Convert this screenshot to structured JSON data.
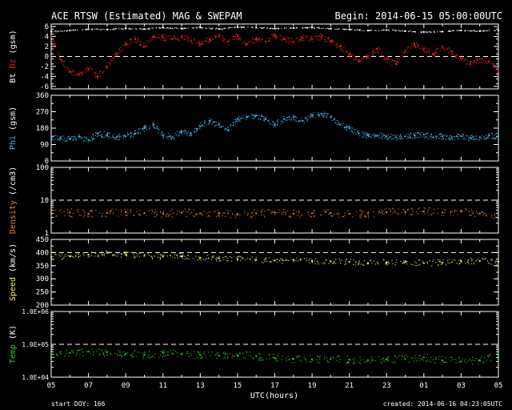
{
  "header": {
    "title": "ACE RTSW (Estimated) MAG & SWEPAM",
    "begin": "Begin: 2014-06-15 05:00:00UTC"
  },
  "footer": {
    "start_doy": "start DOY: 166",
    "created": "created: 2014-06-16 04:23:05UTC"
  },
  "colors": {
    "background": "#000000",
    "axes": "#ffffff",
    "bt": "#ffffff",
    "bz": "#e02020",
    "phi": "#40b8e8",
    "density": "#e88040",
    "speed": "#f0f060",
    "temp": "#30d030"
  },
  "chart_data": {
    "type": "scatter",
    "x_label": "UTC(hours)",
    "x_range_hours": [
      0,
      24
    ],
    "x_tick_labels": [
      "05",
      "07",
      "09",
      "11",
      "13",
      "15",
      "17",
      "19",
      "21",
      "23",
      "01",
      "03",
      "05"
    ],
    "panels": [
      {
        "key": "mag",
        "ylabel_parts": [
          {
            "text": "Bt",
            "color": "#ffffff"
          },
          {
            "text": " ",
            "color": "#ffffff"
          },
          {
            "text": "Bz",
            "color": "#e02020"
          },
          {
            "text": " (gsm)",
            "color": "#ffffff"
          }
        ],
        "scale": "linear",
        "ylim": [
          -6.5,
          6.5
        ],
        "ticks": [
          -6,
          -4,
          -2,
          0,
          2,
          4,
          6
        ],
        "tick_labels": [
          "-6",
          "-4",
          "-2",
          "0",
          "2",
          "4",
          "6"
        ],
        "dashed_refs": [
          0
        ],
        "series": [
          {
            "name": "Bt",
            "color": "#ffffff",
            "x": [
              0,
              1,
              2,
              3,
              4,
              5,
              6,
              7,
              8,
              9,
              10,
              11,
              12,
              13,
              14,
              15,
              16,
              17,
              18,
              19,
              20,
              21,
              22,
              23,
              24
            ],
            "y": [
              5.0,
              5.2,
              5.5,
              5.4,
              5.6,
              5.5,
              5.8,
              5.6,
              5.8,
              5.5,
              5.9,
              5.8,
              5.6,
              5.7,
              5.8,
              5.6,
              5.4,
              5.2,
              5.3,
              5.1,
              4.9,
              5.0,
              5.2,
              5.1,
              5.2
            ]
          },
          {
            "name": "Bz",
            "color": "#e02020",
            "x": [
              0,
              0.5,
              1,
              1.5,
              2,
              2.5,
              3,
              3.5,
              4,
              4.5,
              5,
              5.5,
              6,
              6.5,
              7,
              7.5,
              8,
              8.5,
              9,
              9.5,
              10,
              10.5,
              11,
              11.5,
              12,
              12.5,
              13,
              13.5,
              14,
              14.5,
              15,
              15.5,
              16,
              16.5,
              17,
              17.5,
              18,
              18.5,
              19,
              19.5,
              20,
              20.5,
              21,
              21.5,
              22,
              22.5,
              23,
              23.5,
              24
            ],
            "y": [
              4.0,
              -0.5,
              -3.0,
              -3.5,
              -2.5,
              -4.0,
              -2.0,
              0.5,
              2.5,
              3.5,
              2.0,
              4.0,
              3.8,
              3.5,
              4.0,
              3.2,
              2.5,
              3.5,
              4.0,
              3.0,
              4.0,
              2.5,
              3.5,
              3.0,
              4.2,
              3.5,
              3.0,
              3.8,
              3.5,
              4.0,
              3.0,
              2.0,
              0.5,
              -1.0,
              0.0,
              1.5,
              -0.5,
              -1.5,
              1.0,
              2.5,
              1.5,
              0.5,
              2.0,
              1.0,
              -0.5,
              -1.5,
              -0.5,
              -1.0,
              -3.0
            ]
          }
        ]
      },
      {
        "key": "phi",
        "ylabel_parts": [
          {
            "text": "Phi",
            "color": "#40b8e8"
          },
          {
            "text": " (gsm)",
            "color": "#ffffff"
          }
        ],
        "scale": "linear",
        "ylim": [
          0,
          360
        ],
        "ticks": [
          0,
          90,
          180,
          270,
          360
        ],
        "tick_labels": [
          "0",
          "90",
          "180",
          "270",
          "360"
        ],
        "dashed_refs": [],
        "series": [
          {
            "name": "Phi",
            "color": "#40b8e8",
            "x": [
              0,
              0.5,
              1,
              1.5,
              2,
              2.5,
              3,
              3.5,
              4,
              4.5,
              5,
              5.5,
              6,
              6.5,
              7,
              7.5,
              8,
              8.5,
              9,
              9.5,
              10,
              10.5,
              11,
              11.5,
              12,
              12.5,
              13,
              13.5,
              14,
              14.5,
              15,
              15.5,
              16,
              16.5,
              17,
              17.5,
              18,
              18.5,
              19,
              19.5,
              20,
              20.5,
              21,
              21.5,
              22,
              22.5,
              23,
              23.5,
              24
            ],
            "y": [
              130,
              125,
              120,
              135,
              115,
              150,
              140,
              130,
              135,
              150,
              180,
              200,
              140,
              130,
              160,
              150,
              190,
              220,
              200,
              170,
              230,
              240,
              250,
              230,
              200,
              230,
              240,
              220,
              250,
              260,
              240,
              200,
              180,
              150,
              140,
              140,
              135,
              130,
              135,
              140,
              145,
              130,
              135,
              130,
              135,
              125,
              130,
              140,
              135
            ]
          }
        ]
      },
      {
        "key": "density",
        "ylabel_parts": [
          {
            "text": "Density",
            "color": "#e88040"
          },
          {
            "text": " (/cm3)",
            "color": "#ffffff"
          }
        ],
        "scale": "log",
        "ylim": [
          1,
          100
        ],
        "ticks": [
          1,
          10,
          100
        ],
        "tick_labels": [
          "1",
          "10",
          "100"
        ],
        "dashed_refs": [
          10
        ],
        "series": [
          {
            "name": "Density",
            "color": "#e88040",
            "x": [
              0,
              1,
              2,
              3,
              4,
              5,
              6,
              7,
              8,
              9,
              10,
              11,
              12,
              13,
              14,
              15,
              16,
              17,
              18,
              19,
              20,
              21,
              22,
              23,
              24
            ],
            "y": [
              4.0,
              4.2,
              3.8,
              4.1,
              4.3,
              4.0,
              3.9,
              4.2,
              4.0,
              4.1,
              3.8,
              4.0,
              4.2,
              3.9,
              4.0,
              4.1,
              3.9,
              4.0,
              4.3,
              4.4,
              4.6,
              4.2,
              4.5,
              3.9,
              3.5
            ]
          }
        ]
      },
      {
        "key": "speed",
        "ylabel_parts": [
          {
            "text": "Speed",
            "color": "#f0f060"
          },
          {
            "text": " (km/s)",
            "color": "#ffffff"
          }
        ],
        "scale": "linear",
        "ylim": [
          200,
          450
        ],
        "ticks": [
          200,
          250,
          300,
          350,
          400,
          450
        ],
        "tick_labels": [
          "200",
          "250",
          "300",
          "350",
          "400",
          "450"
        ],
        "dashed_refs": [
          400
        ],
        "series": [
          {
            "name": "Speed",
            "color": "#f0f060",
            "x": [
              0,
              1,
              2,
              3,
              4,
              5,
              6,
              7,
              8,
              9,
              10,
              11,
              12,
              13,
              14,
              15,
              16,
              17,
              18,
              19,
              20,
              21,
              22,
              23,
              24
            ],
            "y": [
              382,
              386,
              392,
              400,
              392,
              388,
              385,
              386,
              380,
              378,
              375,
              372,
              370,
              372,
              368,
              366,
              365,
              360,
              362,
              364,
              360,
              362,
              366,
              368,
              365
            ]
          }
        ]
      },
      {
        "key": "temp",
        "ylabel_parts": [
          {
            "text": "Temp",
            "color": "#30d030"
          },
          {
            "text": " (K)",
            "color": "#ffffff"
          }
        ],
        "scale": "log",
        "ylim": [
          10000,
          1000000
        ],
        "ticks": [
          10000,
          100000,
          1000000
        ],
        "tick_labels": [
          "1.0E+04",
          "1.0E+05",
          "1.0E+06"
        ],
        "dashed_refs": [
          100000
        ],
        "series": [
          {
            "name": "Temp",
            "color": "#30d030",
            "x": [
              0,
              1,
              2,
              3,
              4,
              5,
              6,
              7,
              8,
              9,
              10,
              11,
              12,
              13,
              14,
              15,
              16,
              17,
              18,
              19,
              20,
              21,
              22,
              23,
              24
            ],
            "y": [
              50000,
              55000,
              60000,
              58000,
              52000,
              48000,
              55000,
              50000,
              47000,
              45000,
              46000,
              44000,
              38000,
              36000,
              35000,
              36000,
              34000,
              33000,
              35000,
              36000,
              40000,
              32000,
              30000,
              32000,
              45000
            ]
          }
        ]
      }
    ]
  }
}
